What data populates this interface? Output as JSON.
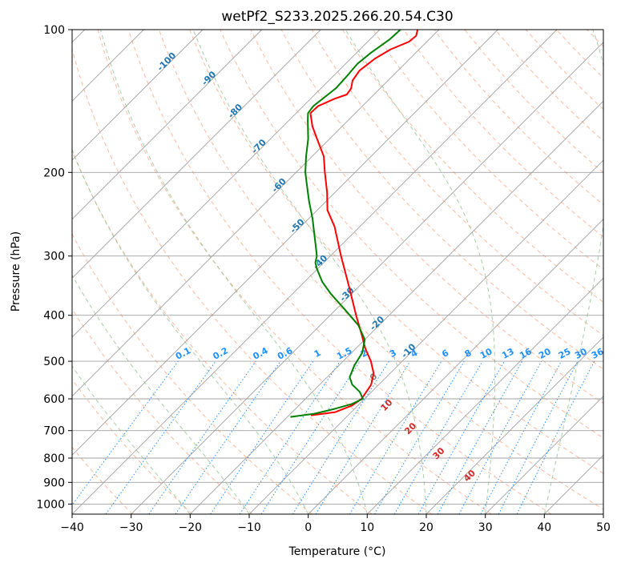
{
  "chart_data": {
    "type": "line",
    "diagram": "skew-T log-P",
    "title": "wetPf2_S233.2025.266.20.54.C30",
    "xlabel": "Temperature (°C)",
    "ylabel": "Pressure (hPa)",
    "xlim": [
      -40,
      50
    ],
    "ylim": [
      1050,
      100
    ],
    "x_ticks": [
      -40,
      -30,
      -20,
      -10,
      0,
      10,
      20,
      30,
      40,
      50
    ],
    "x_tick_labels": [
      "−40",
      "−30",
      "−20",
      "−10",
      "0",
      "10",
      "20",
      "30",
      "40",
      "50"
    ],
    "y_ticks": [
      100,
      200,
      300,
      400,
      500,
      600,
      700,
      800,
      900,
      1000
    ],
    "y_tick_labels": [
      "100",
      "200",
      "300",
      "400",
      "500",
      "600",
      "700",
      "800",
      "900",
      "1000"
    ],
    "grid": true,
    "colors": {
      "temperature": "#ff0000",
      "dewpoint": "#008000",
      "isotherm": "#a0a0a0",
      "isobar": "#a0a0a0",
      "dry_adiabat": "#ffa07a",
      "moist_adiabat": "#90c090",
      "mixing_ratio": "#1e90ff",
      "isotherm_label": "#1f77b4",
      "moist_label": "#d62728"
    },
    "series": [
      {
        "name": "Temperature",
        "color": "#ff0000",
        "points": [
          {
            "p": 650,
            "t": -16.3
          },
          {
            "p": 640,
            "t": -12.7
          },
          {
            "p": 620,
            "t": -11.0
          },
          {
            "p": 600,
            "t": -10.5
          },
          {
            "p": 560,
            "t": -11.3
          },
          {
            "p": 530,
            "t": -12.8
          },
          {
            "p": 500,
            "t": -15.3
          },
          {
            "p": 470,
            "t": -18.4
          },
          {
            "p": 440,
            "t": -21.3
          },
          {
            "p": 400,
            "t": -25.6
          },
          {
            "p": 350,
            "t": -31.4
          },
          {
            "p": 300,
            "t": -38.2
          },
          {
            "p": 260,
            "t": -44.3
          },
          {
            "p": 240,
            "t": -48.3
          },
          {
            "p": 220,
            "t": -51.4
          },
          {
            "p": 200,
            "t": -55.1
          },
          {
            "p": 185,
            "t": -58.0
          },
          {
            "p": 170,
            "t": -62.1
          },
          {
            "p": 160,
            "t": -65.0
          },
          {
            "p": 150,
            "t": -67.6
          },
          {
            "p": 145,
            "t": -67.5
          },
          {
            "p": 140,
            "t": -66.0
          },
          {
            "p": 137,
            "t": -64.6
          },
          {
            "p": 133,
            "t": -64.9
          },
          {
            "p": 128,
            "t": -66.0
          },
          {
            "p": 122,
            "t": -66.5
          },
          {
            "p": 115,
            "t": -65.9
          },
          {
            "p": 110,
            "t": -64.8
          },
          {
            "p": 106,
            "t": -63.0
          },
          {
            "p": 103,
            "t": -62.8
          },
          {
            "p": 100,
            "t": -63.6
          }
        ]
      },
      {
        "name": "Dewpoint",
        "color": "#008000",
        "points": [
          {
            "p": 655,
            "t": -19.5
          },
          {
            "p": 645,
            "t": -16.0
          },
          {
            "p": 630,
            "t": -13.4
          },
          {
            "p": 615,
            "t": -11.3
          },
          {
            "p": 600,
            "t": -10.3
          },
          {
            "p": 580,
            "t": -12.0
          },
          {
            "p": 560,
            "t": -14.5
          },
          {
            "p": 540,
            "t": -16.2
          },
          {
            "p": 510,
            "t": -17.4
          },
          {
            "p": 480,
            "t": -18.2
          },
          {
            "p": 450,
            "t": -20.0
          },
          {
            "p": 420,
            "t": -23.5
          },
          {
            "p": 390,
            "t": -28.3
          },
          {
            "p": 360,
            "t": -33.6
          },
          {
            "p": 340,
            "t": -37.0
          },
          {
            "p": 320,
            "t": -40.0
          },
          {
            "p": 310,
            "t": -41.4
          },
          {
            "p": 300,
            "t": -42.3
          },
          {
            "p": 290,
            "t": -43.6
          },
          {
            "p": 270,
            "t": -46.4
          },
          {
            "p": 250,
            "t": -49.4
          },
          {
            "p": 230,
            "t": -52.9
          },
          {
            "p": 210,
            "t": -56.5
          },
          {
            "p": 200,
            "t": -58.4
          },
          {
            "p": 185,
            "t": -61.0
          },
          {
            "p": 170,
            "t": -63.6
          },
          {
            "p": 155,
            "t": -66.9
          },
          {
            "p": 150,
            "t": -68.0
          },
          {
            "p": 145,
            "t": -68.3
          },
          {
            "p": 140,
            "t": -68.0
          },
          {
            "p": 133,
            "t": -67.5
          },
          {
            "p": 125,
            "t": -67.7
          },
          {
            "p": 118,
            "t": -68.0
          },
          {
            "p": 112,
            "t": -67.6
          },
          {
            "p": 105,
            "t": -66.7
          },
          {
            "p": 100,
            "t": -66.5
          }
        ]
      }
    ],
    "isotherm_labels": [
      {
        "temp": -100,
        "text": "-100",
        "p": 118
      },
      {
        "temp": -90,
        "text": "-90",
        "p": 128
      },
      {
        "temp": -80,
        "text": "-80",
        "p": 150
      },
      {
        "temp": -70,
        "text": "-70",
        "p": 178
      },
      {
        "temp": -60,
        "text": "-60",
        "p": 215
      },
      {
        "temp": -50,
        "text": "-50",
        "p": 262
      },
      {
        "temp": -40,
        "text": "-40",
        "p": 312
      },
      {
        "temp": -30,
        "text": "-30",
        "p": 365
      },
      {
        "temp": -20,
        "text": "-20",
        "p": 420
      },
      {
        "temp": -10,
        "text": "-10",
        "p": 480
      }
    ],
    "mixing_ratios": {
      "values": [
        0.1,
        0.2,
        0.4,
        0.6,
        1,
        1.5,
        2,
        3,
        4,
        6,
        8,
        10,
        13,
        16,
        20,
        25,
        30,
        36
      ],
      "labels": [
        "0.1",
        "0.2",
        "0.4",
        "0.6",
        "1",
        "1.5",
        "2",
        "3",
        "4",
        "6",
        "8",
        "10",
        "13",
        "16",
        "20",
        "25",
        "30",
        "36"
      ]
    },
    "moist_labels": [
      {
        "text": "0",
        "temp": -11.5,
        "p": 545
      },
      {
        "text": "10",
        "temp": -4.5,
        "p": 625
      },
      {
        "text": "20",
        "temp": 3.5,
        "p": 700
      },
      {
        "text": "30",
        "temp": 12.5,
        "p": 790
      },
      {
        "text": "40",
        "temp": 21.5,
        "p": 880
      }
    ]
  }
}
